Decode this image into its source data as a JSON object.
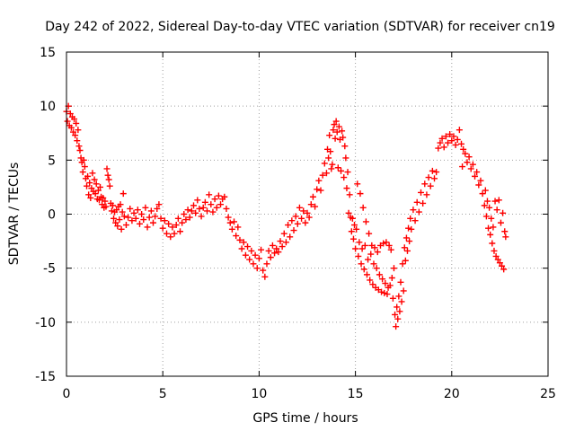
{
  "chart_data": {
    "type": "scatter",
    "title": "Day 242 of 2022, Sidereal Day-to-day VTEC variation (SDTVAR) for receiver cn19",
    "xlabel": "GPS time / hours",
    "ylabel": "SDTVAR / TECUs",
    "xlim": [
      0,
      25
    ],
    "ylim": [
      -15,
      15
    ],
    "xticks": [
      0,
      5,
      10,
      15,
      20,
      25
    ],
    "yticks": [
      -15,
      -10,
      -5,
      0,
      5,
      10,
      15
    ],
    "grid": true,
    "marker": "+",
    "series": [
      {
        "name": "SDTVAR",
        "color": "#ff0000",
        "points": [
          [
            0.0,
            9.5
          ],
          [
            0.05,
            8.6
          ],
          [
            0.1,
            10.0
          ],
          [
            0.15,
            8.2
          ],
          [
            0.2,
            9.3
          ],
          [
            0.25,
            8.0
          ],
          [
            0.3,
            9.0
          ],
          [
            0.35,
            7.6
          ],
          [
            0.4,
            8.8
          ],
          [
            0.45,
            7.3
          ],
          [
            0.5,
            8.4
          ],
          [
            0.55,
            6.8
          ],
          [
            0.6,
            7.8
          ],
          [
            0.65,
            6.3
          ],
          [
            0.7,
            5.9
          ],
          [
            0.75,
            5.2
          ],
          [
            0.8,
            4.8
          ],
          [
            0.85,
            3.9
          ],
          [
            0.9,
            5.0
          ],
          [
            0.95,
            4.4
          ],
          [
            1.0,
            3.3
          ],
          [
            1.05,
            2.6
          ],
          [
            1.1,
            3.5
          ],
          [
            1.15,
            1.8
          ],
          [
            1.2,
            2.9
          ],
          [
            1.25,
            1.5
          ],
          [
            1.3,
            2.4
          ],
          [
            1.35,
            3.8
          ],
          [
            1.4,
            2.1
          ],
          [
            1.45,
            3.2
          ],
          [
            1.5,
            1.9
          ],
          [
            1.55,
            2.8
          ],
          [
            1.6,
            1.4
          ],
          [
            1.65,
            2.2
          ],
          [
            1.7,
            1.3
          ],
          [
            1.75,
            2.5
          ],
          [
            1.8,
            1.6
          ],
          [
            1.85,
            0.9
          ],
          [
            1.9,
            1.5
          ],
          [
            1.95,
            0.6
          ],
          [
            2.0,
            1.2
          ],
          [
            2.05,
            0.7
          ],
          [
            2.1,
            4.2
          ],
          [
            2.15,
            3.6
          ],
          [
            2.2,
            3.2
          ],
          [
            2.25,
            2.6
          ],
          [
            2.3,
            1.0
          ],
          [
            2.35,
            0.3
          ],
          [
            2.4,
            0.8
          ],
          [
            2.45,
            -0.4
          ],
          [
            2.5,
            0.2
          ],
          [
            2.55,
            -0.8
          ],
          [
            2.6,
            0.4
          ],
          [
            2.65,
            -1.1
          ],
          [
            2.7,
            0.7
          ],
          [
            2.75,
            -0.5
          ],
          [
            2.8,
            0.9
          ],
          [
            2.85,
            -1.4
          ],
          [
            2.9,
            0.2
          ],
          [
            2.95,
            1.9
          ],
          [
            3.0,
            -0.2
          ],
          [
            3.1,
            -1.0
          ],
          [
            3.2,
            -0.3
          ],
          [
            3.3,
            0.5
          ],
          [
            3.4,
            -0.6
          ],
          [
            3.5,
            0.1
          ],
          [
            3.6,
            -0.4
          ],
          [
            3.7,
            0.4
          ],
          [
            3.8,
            -0.9
          ],
          [
            3.9,
            0.0
          ],
          [
            4.0,
            -0.5
          ],
          [
            4.1,
            0.6
          ],
          [
            4.2,
            -1.2
          ],
          [
            4.3,
            -0.3
          ],
          [
            4.4,
            0.3
          ],
          [
            4.5,
            -0.8
          ],
          [
            4.6,
            -0.2
          ],
          [
            4.7,
            0.5
          ],
          [
            4.8,
            0.9
          ],
          [
            4.9,
            -0.4
          ],
          [
            5.0,
            -1.3
          ],
          [
            5.1,
            -0.6
          ],
          [
            5.2,
            -1.8
          ],
          [
            5.3,
            -0.9
          ],
          [
            5.4,
            -2.1
          ],
          [
            5.5,
            -1.2
          ],
          [
            5.6,
            -1.8
          ],
          [
            5.7,
            -1.0
          ],
          [
            5.8,
            -0.4
          ],
          [
            5.9,
            -1.6
          ],
          [
            6.0,
            -0.8
          ],
          [
            6.1,
            0.0
          ],
          [
            6.2,
            -0.5
          ],
          [
            6.3,
            0.4
          ],
          [
            6.4,
            -0.3
          ],
          [
            6.5,
            0.3
          ],
          [
            6.6,
            0.8
          ],
          [
            6.7,
            0.1
          ],
          [
            6.8,
            1.3
          ],
          [
            6.9,
            0.5
          ],
          [
            7.0,
            -0.2
          ],
          [
            7.1,
            0.6
          ],
          [
            7.2,
            1.1
          ],
          [
            7.3,
            0.3
          ],
          [
            7.4,
            1.8
          ],
          [
            7.5,
            0.9
          ],
          [
            7.6,
            0.2
          ],
          [
            7.7,
            1.4
          ],
          [
            7.8,
            0.6
          ],
          [
            7.9,
            1.7
          ],
          [
            8.0,
            0.9
          ],
          [
            8.1,
            1.4
          ],
          [
            8.2,
            1.6
          ],
          [
            8.3,
            0.5
          ],
          [
            8.4,
            -0.3
          ],
          [
            8.5,
            -0.8
          ],
          [
            8.6,
            -1.4
          ],
          [
            8.7,
            -0.7
          ],
          [
            8.8,
            -2.0
          ],
          [
            8.9,
            -1.2
          ],
          [
            9.0,
            -2.4
          ],
          [
            9.1,
            -3.2
          ],
          [
            9.2,
            -2.6
          ],
          [
            9.3,
            -3.8
          ],
          [
            9.4,
            -3.0
          ],
          [
            9.5,
            -4.2
          ],
          [
            9.6,
            -3.4
          ],
          [
            9.7,
            -4.6
          ],
          [
            9.8,
            -3.8
          ],
          [
            9.9,
            -5.0
          ],
          [
            10.0,
            -4.1
          ],
          [
            10.1,
            -3.3
          ],
          [
            10.2,
            -5.2
          ],
          [
            10.3,
            -5.8
          ],
          [
            10.4,
            -4.6
          ],
          [
            10.5,
            -3.4
          ],
          [
            10.6,
            -4.0
          ],
          [
            10.7,
            -2.9
          ],
          [
            10.8,
            -3.6
          ],
          [
            10.9,
            -3.2
          ],
          [
            11.0,
            -3.5
          ],
          [
            11.1,
            -2.5
          ],
          [
            11.2,
            -3.0
          ],
          [
            11.3,
            -1.8
          ],
          [
            11.4,
            -2.6
          ],
          [
            11.5,
            -1.0
          ],
          [
            11.6,
            -2.1
          ],
          [
            11.7,
            -0.6
          ],
          [
            11.8,
            -1.5
          ],
          [
            11.9,
            -0.2
          ],
          [
            12.0,
            -0.9
          ],
          [
            12.1,
            0.6
          ],
          [
            12.2,
            -0.4
          ],
          [
            12.3,
            0.3
          ],
          [
            12.4,
            -0.8
          ],
          [
            12.5,
            0.1
          ],
          [
            12.6,
            -0.3
          ],
          [
            12.7,
            0.9
          ],
          [
            12.8,
            1.6
          ],
          [
            12.9,
            0.7
          ],
          [
            13.0,
            2.3
          ],
          [
            13.1,
            3.1
          ],
          [
            13.2,
            2.2
          ],
          [
            13.3,
            3.6
          ],
          [
            13.4,
            4.7
          ],
          [
            13.5,
            3.8
          ],
          [
            13.55,
            6.0
          ],
          [
            13.6,
            5.2
          ],
          [
            13.65,
            7.3
          ],
          [
            13.7,
            5.8
          ],
          [
            13.75,
            4.2
          ],
          [
            13.8,
            4.6
          ],
          [
            13.85,
            7.8
          ],
          [
            13.9,
            8.3
          ],
          [
            13.95,
            7.0
          ],
          [
            14.0,
            8.6
          ],
          [
            14.05,
            7.6
          ],
          [
            14.1,
            4.3
          ],
          [
            14.15,
            8.1
          ],
          [
            14.2,
            6.9
          ],
          [
            14.25,
            4.0
          ],
          [
            14.3,
            7.7
          ],
          [
            14.35,
            7.1
          ],
          [
            14.4,
            3.4
          ],
          [
            14.45,
            6.3
          ],
          [
            14.5,
            5.2
          ],
          [
            14.55,
            2.4
          ],
          [
            14.6,
            3.9
          ],
          [
            14.65,
            0.1
          ],
          [
            14.7,
            1.8
          ],
          [
            14.75,
            -0.3
          ],
          [
            14.8,
            -1.6
          ],
          [
            14.85,
            -0.4
          ],
          [
            14.9,
            -2.3
          ],
          [
            14.95,
            -1.0
          ],
          [
            15.0,
            -3.2
          ],
          [
            15.05,
            -1.4
          ],
          [
            15.1,
            2.8
          ],
          [
            15.15,
            -3.9
          ],
          [
            15.2,
            -2.6
          ],
          [
            15.25,
            1.9
          ],
          [
            15.3,
            -4.6
          ],
          [
            15.35,
            -3.2
          ],
          [
            15.4,
            0.6
          ],
          [
            15.45,
            -5.1
          ],
          [
            15.5,
            -2.9
          ],
          [
            15.55,
            -0.7
          ],
          [
            15.6,
            -5.6
          ],
          [
            15.65,
            -4.2
          ],
          [
            15.7,
            -1.8
          ],
          [
            15.75,
            -6.1
          ],
          [
            15.8,
            -3.7
          ],
          [
            15.85,
            -2.9
          ],
          [
            15.9,
            -6.5
          ],
          [
            15.95,
            -4.6
          ],
          [
            16.0,
            -3.1
          ],
          [
            16.05,
            -6.8
          ],
          [
            16.1,
            -5.0
          ],
          [
            16.15,
            -3.5
          ],
          [
            16.2,
            -7.0
          ],
          [
            16.25,
            -5.6
          ],
          [
            16.3,
            -2.9
          ],
          [
            16.35,
            -7.2
          ],
          [
            16.4,
            -6.0
          ],
          [
            16.45,
            -2.7
          ],
          [
            16.5,
            -7.3
          ],
          [
            16.55,
            -6.4
          ],
          [
            16.6,
            -2.6
          ],
          [
            16.65,
            -7.4
          ],
          [
            16.7,
            -6.8
          ],
          [
            16.75,
            -2.9
          ],
          [
            16.8,
            -6.6
          ],
          [
            16.85,
            -3.3
          ],
          [
            16.9,
            -5.9
          ],
          [
            16.95,
            -7.8
          ],
          [
            17.0,
            -5.0
          ],
          [
            17.05,
            -9.3
          ],
          [
            17.1,
            -10.4
          ],
          [
            17.15,
            -8.6
          ],
          [
            17.2,
            -9.7
          ],
          [
            17.25,
            -7.6
          ],
          [
            17.3,
            -9.0
          ],
          [
            17.35,
            -6.3
          ],
          [
            17.4,
            -8.1
          ],
          [
            17.45,
            -4.6
          ],
          [
            17.5,
            -7.1
          ],
          [
            17.55,
            -3.1
          ],
          [
            17.6,
            -4.3
          ],
          [
            17.65,
            -2.2
          ],
          [
            17.7,
            -3.4
          ],
          [
            17.75,
            -1.3
          ],
          [
            17.8,
            -2.5
          ],
          [
            17.85,
            -0.4
          ],
          [
            17.9,
            -1.4
          ],
          [
            18.0,
            0.4
          ],
          [
            18.1,
            -0.6
          ],
          [
            18.2,
            1.1
          ],
          [
            18.3,
            0.2
          ],
          [
            18.4,
            2.0
          ],
          [
            18.5,
            1.0
          ],
          [
            18.6,
            2.8
          ],
          [
            18.7,
            1.8
          ],
          [
            18.8,
            3.4
          ],
          [
            18.9,
            2.6
          ],
          [
            19.0,
            4.0
          ],
          [
            19.1,
            3.3
          ],
          [
            19.2,
            3.9
          ],
          [
            19.3,
            6.1
          ],
          [
            19.4,
            6.6
          ],
          [
            19.5,
            7.0
          ],
          [
            19.6,
            6.2
          ],
          [
            19.7,
            7.2
          ],
          [
            19.8,
            6.6
          ],
          [
            19.9,
            7.4
          ],
          [
            20.0,
            6.8
          ],
          [
            20.1,
            7.2
          ],
          [
            20.2,
            6.4
          ],
          [
            20.3,
            6.9
          ],
          [
            20.4,
            7.8
          ],
          [
            20.5,
            6.5
          ],
          [
            20.55,
            4.4
          ],
          [
            20.6,
            6.0
          ],
          [
            20.7,
            5.6
          ],
          [
            20.8,
            4.8
          ],
          [
            20.9,
            5.3
          ],
          [
            21.0,
            4.2
          ],
          [
            21.1,
            4.6
          ],
          [
            21.2,
            3.5
          ],
          [
            21.3,
            3.9
          ],
          [
            21.4,
            2.7
          ],
          [
            21.5,
            3.1
          ],
          [
            21.6,
            1.9
          ],
          [
            21.7,
            0.8
          ],
          [
            21.75,
            2.2
          ],
          [
            21.8,
            -0.2
          ],
          [
            21.85,
            1.2
          ],
          [
            21.9,
            -1.3
          ],
          [
            21.95,
            0.6
          ],
          [
            22.0,
            -1.9
          ],
          [
            22.05,
            -0.4
          ],
          [
            22.1,
            -2.7
          ],
          [
            22.15,
            -1.2
          ],
          [
            22.2,
            -3.4
          ],
          [
            22.25,
            1.2
          ],
          [
            22.3,
            -3.9
          ],
          [
            22.35,
            0.4
          ],
          [
            22.4,
            -4.2
          ],
          [
            22.45,
            1.3
          ],
          [
            22.5,
            -4.5
          ],
          [
            22.55,
            -0.8
          ],
          [
            22.6,
            -4.8
          ],
          [
            22.65,
            0.1
          ],
          [
            22.7,
            -5.1
          ],
          [
            22.75,
            -1.6
          ],
          [
            22.8,
            -2.1
          ]
        ]
      }
    ]
  }
}
